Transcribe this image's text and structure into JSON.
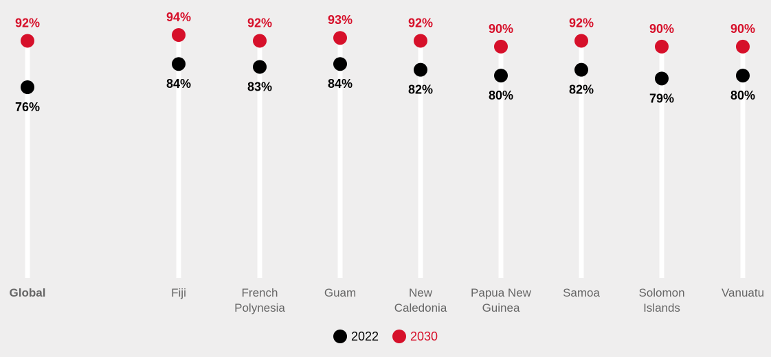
{
  "chart_data": {
    "type": "dot",
    "categories": [
      "Global",
      "Fiji",
      "French Polynesia",
      "Guam",
      "New Caledonia",
      "Papua New Guinea",
      "Samoa",
      "Solomon Islands",
      "Vanuatu"
    ],
    "category_lines": [
      [
        "Global"
      ],
      [
        "Fiji"
      ],
      [
        "French",
        "Polynesia"
      ],
      [
        "Guam"
      ],
      [
        "New",
        "Caledonia"
      ],
      [
        "Papua New",
        "Guinea"
      ],
      [
        "Samoa"
      ],
      [
        "Solomon",
        "Islands"
      ],
      [
        "Vanuatu"
      ]
    ],
    "bold_categories": [
      "Global"
    ],
    "series": [
      {
        "name": "2022",
        "color": "#000000",
        "values": [
          76,
          84,
          83,
          84,
          82,
          80,
          82,
          79,
          80
        ],
        "labels": [
          "76%",
          "84%",
          "83%",
          "84%",
          "82%",
          "80%",
          "82%",
          "79%",
          "80%"
        ],
        "label_position": "below"
      },
      {
        "name": "2030",
        "color": "#d6102a",
        "values": [
          92,
          94,
          92,
          93,
          92,
          90,
          92,
          90,
          90
        ],
        "labels": [
          "92%",
          "94%",
          "92%",
          "93%",
          "92%",
          "90%",
          "92%",
          "90%",
          "90%"
        ],
        "label_position": "above"
      }
    ],
    "title": "",
    "xlabel": "",
    "ylabel": "",
    "legend": "bottom-center",
    "grid": false,
    "stem_color": "#ffffff"
  },
  "legend": {
    "items": [
      {
        "label": "2022",
        "color": "#000000"
      },
      {
        "label": "2030",
        "color": "#d6102a"
      }
    ]
  }
}
